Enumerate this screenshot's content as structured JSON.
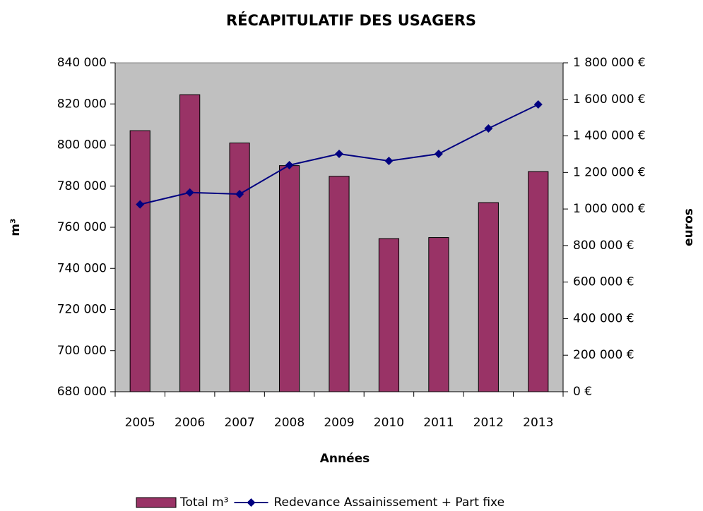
{
  "chart_data": {
    "type": "bar-line",
    "title": "RÉCAPITULATIF DES USAGERS",
    "x_label": "Années",
    "y_label": "m³",
    "y2_label": "euros",
    "categories": [
      "2005",
      "2006",
      "2007",
      "2008",
      "2009",
      "2010",
      "2011",
      "2012",
      "2013"
    ],
    "series": [
      {
        "name": "Total m³",
        "type": "bar",
        "color": "#993366",
        "values": [
          807000,
          824500,
          801000,
          790000,
          784800,
          754500,
          755000,
          772000,
          787100
        ]
      },
      {
        "name": "Redevance Assainissement + Part fixe",
        "type": "line",
        "axis": "y2",
        "color": "#000080",
        "values": [
          1025000,
          1090000,
          1081500,
          1240000,
          1301700,
          1263100,
          1301700,
          1440800,
          1572100
        ]
      }
    ],
    "ylim": [
      680000,
      840000
    ],
    "yticks": [
      {
        "value": 680000,
        "label": "680 000"
      },
      {
        "value": 700000,
        "label": "700 000"
      },
      {
        "value": 720000,
        "label": "720 000"
      },
      {
        "value": 740000,
        "label": "740 000"
      },
      {
        "value": 760000,
        "label": "760 000"
      },
      {
        "value": 780000,
        "label": "780 000"
      },
      {
        "value": 800000,
        "label": "800 000"
      },
      {
        "value": 820000,
        "label": "820 000"
      },
      {
        "value": 840000,
        "label": "840 000"
      }
    ],
    "y2lim": [
      0,
      1800000
    ],
    "y2ticks": [
      {
        "value": 0,
        "label": "0 €"
      },
      {
        "value": 200000,
        "label": "200 000 €"
      },
      {
        "value": 400000,
        "label": "400 000 €"
      },
      {
        "value": 600000,
        "label": "600 000 €"
      },
      {
        "value": 800000,
        "label": "800 000 €"
      },
      {
        "value": 1000000,
        "label": "1 000 000 €"
      },
      {
        "value": 1200000,
        "label": "1 200 000 €"
      },
      {
        "value": 1400000,
        "label": "1 400 000 €"
      },
      {
        "value": 1600000,
        "label": "1 600 000 €"
      },
      {
        "value": 1800000,
        "label": "1 800 000 €"
      }
    ],
    "plot_background": "#c0c0c0",
    "legend": "bottom"
  }
}
